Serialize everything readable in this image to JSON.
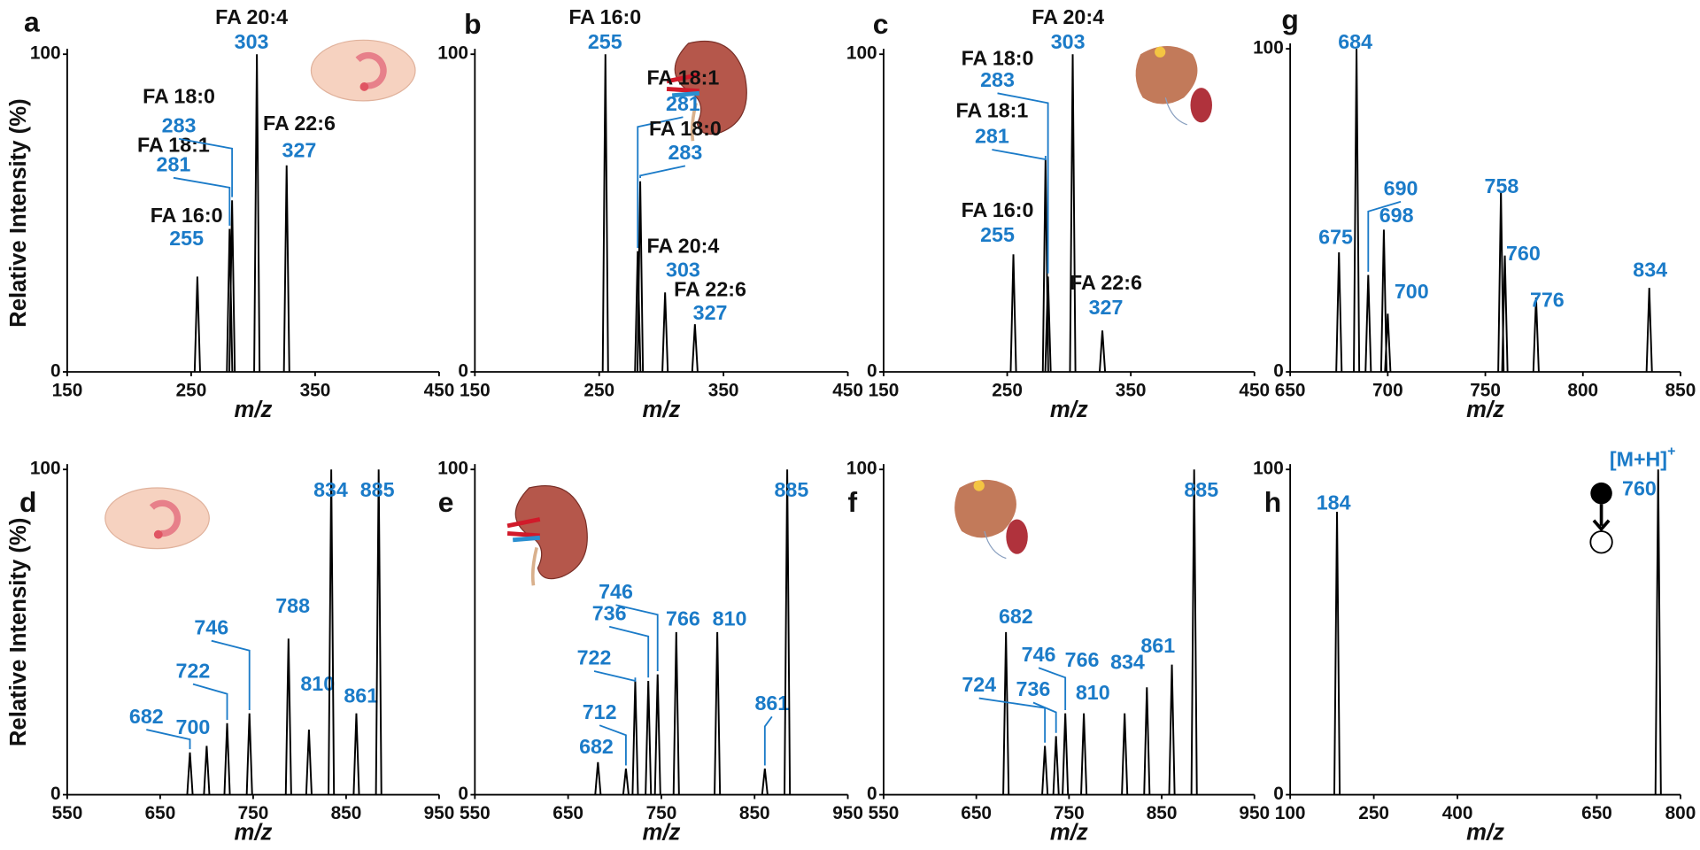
{
  "chart_data": [
    {
      "type": "spectrum",
      "panel": "a",
      "y_label": "Relative Intensity (%)",
      "x_label": "m/z",
      "x": [
        255,
        281,
        283,
        303,
        327
      ],
      "values": [
        30,
        45,
        54,
        100,
        65
      ],
      "peak_names": [
        "FA 16:0",
        "FA 18:1",
        "FA 18:0",
        "FA 20:4",
        "FA 22:6"
      ],
      "xlim": [
        150,
        450
      ],
      "xticks": [
        150,
        250,
        350,
        450
      ],
      "ylim": [
        0,
        100
      ],
      "yticks": [
        0,
        100
      ],
      "color": "#000000",
      "label_color": "#1b7bc8"
    },
    {
      "type": "spectrum",
      "panel": "b",
      "x_label": "m/z",
      "x": [
        255,
        281,
        283,
        303,
        327
      ],
      "values": [
        100,
        38,
        60,
        25,
        15
      ],
      "peak_names": [
        "FA 16:0",
        "FA 18:1",
        "FA 18:0",
        "FA 20:4",
        "FA 22:6"
      ],
      "xlim": [
        150,
        450
      ],
      "xticks": [
        150,
        250,
        350,
        450
      ],
      "ylim": [
        0,
        100
      ],
      "yticks": [
        0,
        100
      ],
      "color": "#000000",
      "label_color": "#1b7bc8"
    },
    {
      "type": "spectrum",
      "panel": "c",
      "x_label": "m/z",
      "x": [
        255,
        281,
        283,
        303,
        327
      ],
      "values": [
        37,
        67,
        30,
        100,
        13
      ],
      "peak_names": [
        "FA 16:0",
        "FA 18:1",
        "FA 18:0",
        "FA 20:4",
        "FA 22:6"
      ],
      "xlim": [
        150,
        450
      ],
      "xticks": [
        150,
        250,
        350,
        450
      ],
      "ylim": [
        0,
        100
      ],
      "yticks": [
        0,
        100
      ],
      "color": "#000000",
      "label_color": "#1b7bc8"
    },
    {
      "type": "spectrum",
      "panel": "g",
      "x_label": "m/z",
      "x": [
        675,
        684,
        690,
        698,
        700,
        758,
        760,
        776,
        834
      ],
      "values": [
        37,
        100,
        30,
        44,
        18,
        56,
        36,
        23,
        26
      ],
      "xlim": [
        650,
        850
      ],
      "xticks": [
        650,
        700,
        750,
        800,
        850
      ],
      "ylim": [
        0,
        100
      ],
      "yticks": [
        0,
        100
      ],
      "color": "#000000",
      "label_color": "#1b7bc8"
    },
    {
      "type": "spectrum",
      "panel": "d",
      "y_label": "Relative Intensity (%)",
      "x_label": "m/z",
      "x": [
        682,
        700,
        722,
        746,
        788,
        810,
        834,
        861,
        885
      ],
      "values": [
        13,
        15,
        22,
        25,
        48,
        20,
        100,
        25,
        100
      ],
      "xlim": [
        550,
        950
      ],
      "xticks": [
        550,
        650,
        750,
        850,
        950
      ],
      "ylim": [
        0,
        100
      ],
      "yticks": [
        0,
        100
      ],
      "color": "#000000",
      "label_color": "#1b7bc8"
    },
    {
      "type": "spectrum",
      "panel": "e",
      "x_label": "m/z",
      "x": [
        682,
        712,
        722,
        736,
        746,
        766,
        810,
        861,
        885
      ],
      "values": [
        10,
        8,
        35,
        35,
        37,
        50,
        50,
        8,
        100
      ],
      "xlim": [
        550,
        950
      ],
      "xticks": [
        550,
        650,
        750,
        850,
        950
      ],
      "ylim": [
        0,
        100
      ],
      "yticks": [
        0,
        100
      ],
      "color": "#000000",
      "label_color": "#1b7bc8"
    },
    {
      "type": "spectrum",
      "panel": "f",
      "x_label": "m/z",
      "x": [
        682,
        724,
        736,
        746,
        766,
        810,
        834,
        861,
        885
      ],
      "values": [
        50,
        15,
        18,
        25,
        25,
        25,
        33,
        40,
        100
      ],
      "xlim": [
        550,
        950
      ],
      "xticks": [
        550,
        650,
        750,
        850,
        950
      ],
      "ylim": [
        0,
        100
      ],
      "yticks": [
        0,
        100
      ],
      "color": "#000000",
      "label_color": "#1b7bc8"
    },
    {
      "type": "spectrum",
      "panel": "h",
      "x_label": "m/z",
      "x": [
        184,
        760
      ],
      "values": [
        87,
        100
      ],
      "annotation": {
        "text": "[M+H]",
        "sup": "+"
      },
      "xlim": [
        100,
        800
      ],
      "xticks": [
        100,
        250,
        400,
        650,
        800
      ],
      "ylim": [
        0,
        100
      ],
      "yticks": [
        0,
        100
      ],
      "color": "#000000",
      "label_color": "#1b7bc8"
    }
  ]
}
